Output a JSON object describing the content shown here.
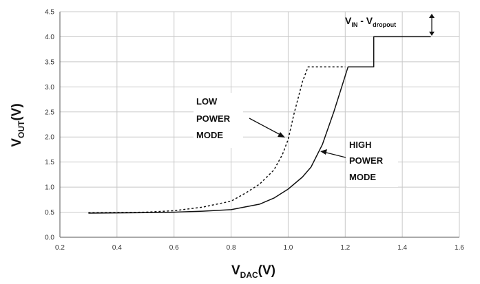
{
  "chart_data": {
    "type": "line",
    "xlim": [
      0.2,
      1.6
    ],
    "ylim": [
      0.0,
      4.5
    ],
    "x_ticks": [
      "0.2",
      "0.4",
      "0.6",
      "0.8",
      "1.0",
      "1.2",
      "1.4",
      "1.6"
    ],
    "y_ticks": [
      "0.0",
      "0.5",
      "1.0",
      "1.5",
      "2.0",
      "2.5",
      "3.0",
      "3.5",
      "4.0",
      "4.5"
    ],
    "grid": true,
    "xlabel": {
      "main": "V",
      "sub": "DAC",
      "unit": "(V)"
    },
    "ylabel": {
      "main": "V",
      "sub": "OUT",
      "unit": "(V)"
    },
    "series": [
      {
        "style": "solid",
        "color": "#111111",
        "points": [
          [
            0.3,
            0.48
          ],
          [
            0.5,
            0.49
          ],
          [
            0.6,
            0.5
          ],
          [
            0.7,
            0.52
          ],
          [
            0.8,
            0.55
          ],
          [
            0.9,
            0.66
          ],
          [
            0.95,
            0.78
          ],
          [
            1.0,
            0.96
          ],
          [
            1.05,
            1.2
          ],
          [
            1.08,
            1.4
          ],
          [
            1.12,
            1.85
          ],
          [
            1.16,
            2.5
          ],
          [
            1.21,
            3.4
          ],
          [
            1.3,
            3.4
          ],
          [
            1.3,
            4.0
          ],
          [
            1.5,
            4.0
          ]
        ]
      },
      {
        "style": "dashed",
        "color": "#111111",
        "points": [
          [
            0.3,
            0.49
          ],
          [
            0.5,
            0.5
          ],
          [
            0.6,
            0.53
          ],
          [
            0.7,
            0.6
          ],
          [
            0.8,
            0.72
          ],
          [
            0.85,
            0.88
          ],
          [
            0.9,
            1.06
          ],
          [
            0.95,
            1.34
          ],
          [
            0.98,
            1.65
          ],
          [
            1.0,
            1.95
          ],
          [
            1.02,
            2.45
          ],
          [
            1.05,
            3.1
          ],
          [
            1.07,
            3.4
          ],
          [
            1.2,
            3.4
          ]
        ]
      }
    ],
    "annotations": {
      "low_power": {
        "lines": [
          "LOW",
          "POWER",
          "MODE"
        ]
      },
      "high_power": {
        "lines": [
          "HIGH",
          "POWER",
          "MODE"
        ]
      },
      "dropout": {
        "a": "V",
        "a_sub": "IN",
        "sep": " - ",
        "b": "V",
        "b_sub": "dropout"
      }
    }
  }
}
